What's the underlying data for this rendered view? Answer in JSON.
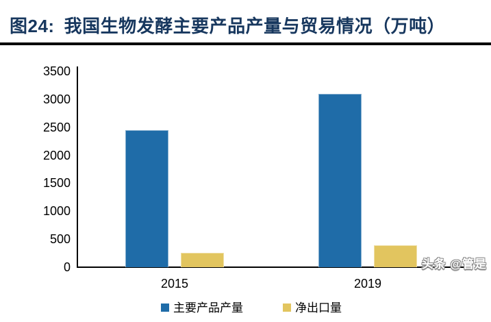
{
  "figure": {
    "label": "图24:",
    "title": "我国生物发酵主要产品产量与贸易情况（万吨）"
  },
  "watermark": "头条 @管是",
  "colors": {
    "title_navy": "#17375E",
    "series_primary": "#1F6CA8",
    "series_secondary": "#E2C55F",
    "axis": "#000000",
    "divider": "#000000"
  },
  "chart_data": {
    "type": "bar",
    "title": "我国生物发酵主要产品产量与贸易情况（万吨）",
    "figure_number": "图24",
    "unit": "万吨",
    "categories": [
      "2015",
      "2019"
    ],
    "series": [
      {
        "name": "主要产品产量",
        "color": "#1F6CA8",
        "values": [
          2450,
          3100
        ]
      },
      {
        "name": "净出口量",
        "color": "#E2C55F",
        "values": [
          260,
          390
        ]
      }
    ],
    "xlabel": "",
    "ylabel": "",
    "ylim": [
      0,
      3500
    ],
    "yticks": [
      0,
      500,
      1000,
      1500,
      2000,
      2500,
      3000,
      3500
    ],
    "grid": false,
    "legend_position": "bottom"
  }
}
